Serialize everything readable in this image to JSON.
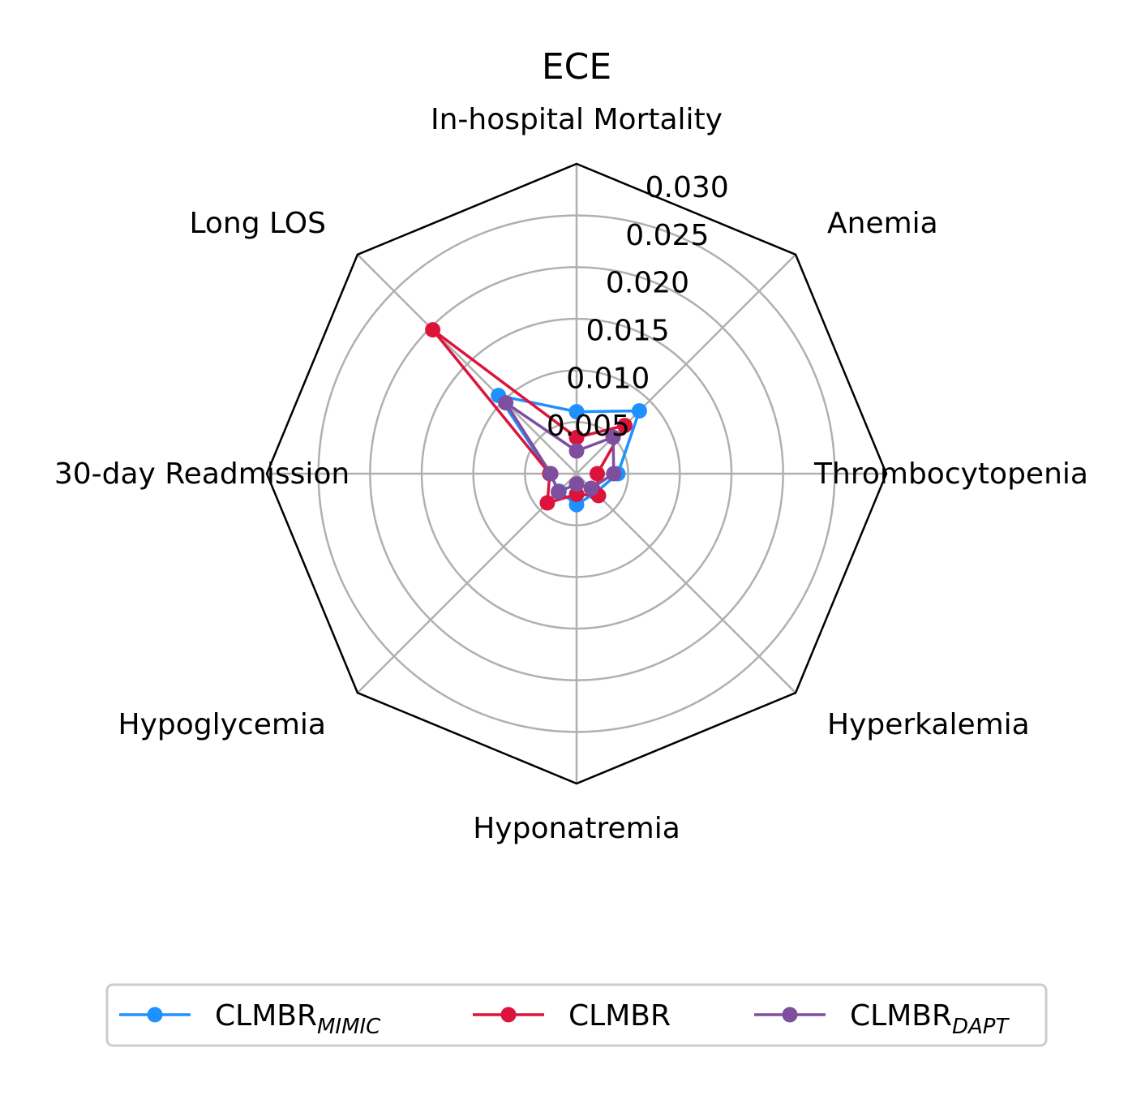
{
  "chart_data": {
    "type": "radar",
    "title": "ECE",
    "categories": [
      "In-hospital Mortality",
      "Anemia",
      "Thrombocytopenia",
      "Hyperkalemia",
      "Hyponatremia",
      "Hypoglycemia",
      "30-day Readmission",
      "Long LOS"
    ],
    "rlim": [
      0,
      0.03
    ],
    "rticks": [
      "0.005",
      "0.010",
      "0.015",
      "0.020",
      "0.025",
      "0.030"
    ],
    "grid": true,
    "legend_position": "bottom",
    "series": [
      {
        "name": "CLMBR",
        "name_sub": "MIMIC",
        "color": "#1e90ff",
        "values": [
          0.006,
          0.0086,
          0.004,
          0.0026,
          0.003,
          0.0024,
          0.0026,
          0.0107
        ]
      },
      {
        "name": "CLMBR",
        "name_sub": "",
        "color": "#dc143c",
        "values": [
          0.0035,
          0.0066,
          0.002,
          0.003,
          0.002,
          0.004,
          0.0026,
          0.0197
        ]
      },
      {
        "name": "CLMBR",
        "name_sub": "DAPT",
        "color": "#7f4f9f",
        "values": [
          0.0022,
          0.005,
          0.0036,
          0.002,
          0.001,
          0.0025,
          0.0025,
          0.0097
        ]
      }
    ]
  }
}
